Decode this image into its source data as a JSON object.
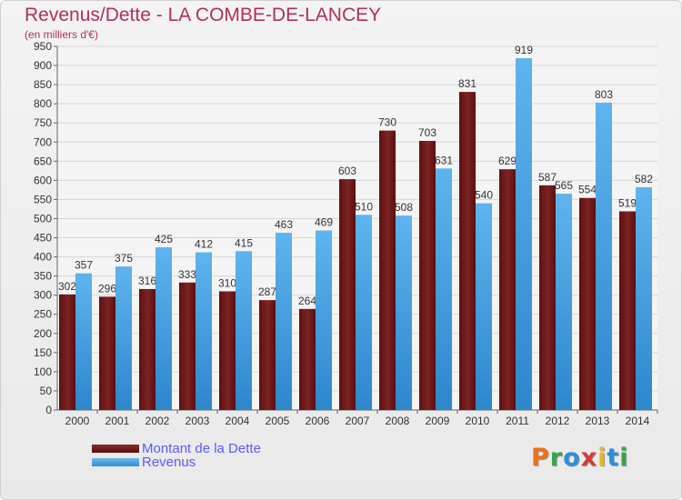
{
  "chart_data": {
    "type": "bar",
    "title": "Revenus/Dette - LA COMBE-DE-LANCEY",
    "subtitle": "(en milliers d'€)",
    "categories": [
      "2000",
      "2001",
      "2002",
      "2003",
      "2004",
      "2005",
      "2006",
      "2007",
      "2008",
      "2009",
      "2010",
      "2011",
      "2012",
      "2013",
      "2014"
    ],
    "series": [
      {
        "name": "Montant de la Dette",
        "color": "#6e1b1b",
        "values": [
          302,
          296,
          316,
          333,
          310,
          287,
          264,
          603,
          730,
          703,
          831,
          629,
          587,
          554,
          519
        ]
      },
      {
        "name": "Revenus",
        "color": "#3d9be0",
        "values": [
          357,
          375,
          425,
          412,
          415,
          463,
          469,
          510,
          508,
          631,
          540,
          919,
          565,
          803,
          582
        ]
      }
    ],
    "ylim": [
      0,
      950
    ],
    "yticks": [
      0,
      50,
      100,
      150,
      200,
      250,
      300,
      350,
      400,
      450,
      500,
      550,
      600,
      650,
      700,
      750,
      800,
      850,
      900,
      950
    ],
    "grid": true,
    "xlabel": "",
    "ylabel": ""
  },
  "branding": {
    "logo_text": "Proxiti"
  }
}
